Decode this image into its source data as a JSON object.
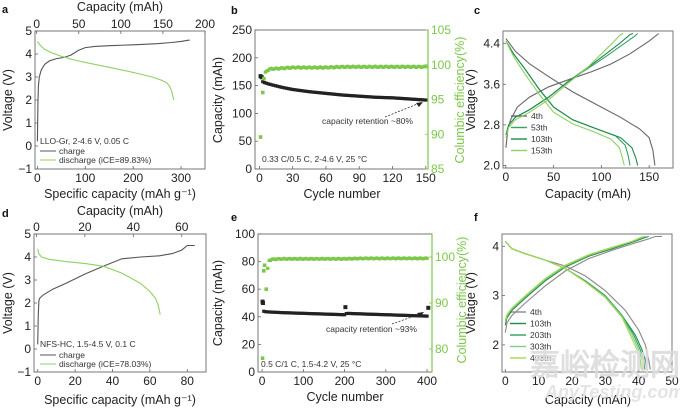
{
  "chart_data": [
    {
      "id": "a",
      "panel_label": "a",
      "type": "line",
      "xlabel": "Specific capacity (mAh g⁻¹)",
      "x2label": "Capacity (mAh)",
      "ylabel": "Voltage (V)",
      "xlim": [
        -5,
        350
      ],
      "x2lim": [
        -2,
        200
      ],
      "ylim": [
        -1,
        5
      ],
      "xticks": [
        0,
        100,
        200,
        300
      ],
      "x2ticks": [
        0,
        50,
        100,
        150,
        200
      ],
      "yticks": [
        -1,
        0,
        1,
        2,
        3,
        4,
        5
      ],
      "annotation": "LLO-Gr, 2-4.6 V, 0.05 C",
      "legend_position": "bottom-left",
      "series": [
        {
          "name": "charge",
          "color": "#555555",
          "x": [
            0,
            1,
            2,
            4,
            8,
            15,
            25,
            40,
            55,
            70,
            85,
            100,
            120,
            150,
            200,
            250,
            280,
            300,
            315,
            318
          ],
          "y": [
            0.2,
            1.8,
            2.6,
            3.0,
            3.3,
            3.55,
            3.7,
            3.8,
            3.85,
            3.95,
            4.15,
            4.28,
            4.33,
            4.36,
            4.4,
            4.45,
            4.5,
            4.55,
            4.6,
            4.6
          ]
        },
        {
          "name": "discharge (iCE=89.83%)",
          "color": "#8fd163",
          "x": [
            0,
            5,
            15,
            30,
            50,
            80,
            120,
            160,
            200,
            240,
            260,
            270,
            276,
            280,
            283,
            285
          ],
          "y": [
            4.55,
            4.4,
            4.2,
            4.05,
            3.9,
            3.72,
            3.55,
            3.38,
            3.2,
            3.0,
            2.85,
            2.75,
            2.6,
            2.4,
            2.15,
            2.0
          ]
        }
      ]
    },
    {
      "id": "b",
      "panel_label": "b",
      "type": "scatter",
      "xlabel": "Cycle number",
      "ylabel": "Capacity (mAh)",
      "y2label": "Columbic efficiency(%)",
      "xlim": [
        -4,
        152
      ],
      "ylim": [
        0,
        250
      ],
      "y2lim": [
        85,
        105
      ],
      "xticks": [
        0,
        30,
        60,
        90,
        120,
        150
      ],
      "yticks": [
        0,
        50,
        100,
        150,
        200,
        250
      ],
      "y2ticks": [
        85,
        90,
        95,
        100,
        105
      ],
      "annotation": "0.33 C/0.5 C, 2-4.6 V, 25 °C",
      "arrow_text": "capacity retention ~80%",
      "series": [
        {
          "name": "Capacity",
          "axis": "left",
          "color": "#222222",
          "x": [
            1,
            2,
            3,
            5,
            10,
            20,
            30,
            45,
            60,
            75,
            90,
            105,
            120,
            135,
            150
          ],
          "y": [
            167,
            165,
            157,
            155,
            152,
            147,
            143,
            139,
            136,
            133,
            131,
            129,
            128,
            126,
            124
          ]
        },
        {
          "name": "Columbic efficiency",
          "axis": "right",
          "color": "#7cc84a",
          "x": [
            1,
            3,
            4,
            5,
            7,
            10,
            20,
            30,
            45,
            60,
            75,
            90,
            105,
            120,
            135,
            150
          ],
          "y": [
            89.6,
            96,
            98,
            98.8,
            99.2,
            99.4,
            99.5,
            99.6,
            99.6,
            99.6,
            99.7,
            99.7,
            99.7,
            99.7,
            99.7,
            99.7
          ]
        }
      ]
    },
    {
      "id": "c",
      "panel_label": "c",
      "type": "line",
      "xlabel": "Capacity (mAh)",
      "ylabel": "Voltage (V)",
      "xlim": [
        -3,
        175
      ],
      "ylim": [
        1.95,
        4.65
      ],
      "xticks": [
        0,
        50,
        100,
        150
      ],
      "yticks": [
        2.0,
        2.8,
        3.6,
        4.4
      ],
      "legend_position": "bottom-left",
      "series": [
        {
          "name": "4th",
          "color": "#666666",
          "charge_x": [
            0,
            2,
            5,
            12,
            25,
            45,
            70,
            90,
            110,
            130,
            150,
            160
          ],
          "charge_y": [
            2.35,
            2.7,
            2.9,
            3.15,
            3.35,
            3.55,
            3.72,
            3.85,
            4.0,
            4.2,
            4.45,
            4.6
          ],
          "discharge_x": [
            0,
            10,
            25,
            45,
            70,
            95,
            120,
            140,
            150,
            154,
            156
          ],
          "discharge_y": [
            4.5,
            4.25,
            4.0,
            3.75,
            3.45,
            3.2,
            2.95,
            2.72,
            2.55,
            2.3,
            2.0
          ]
        },
        {
          "name": "53th",
          "color": "#3aa068",
          "charge_x": [
            0,
            3,
            10,
            25,
            45,
            65,
            85,
            105,
            120,
            135,
            138
          ],
          "charge_y": [
            2.6,
            2.8,
            2.95,
            3.1,
            3.35,
            3.65,
            3.9,
            4.15,
            4.35,
            4.55,
            4.6
          ],
          "discharge_x": [
            0,
            8,
            20,
            35,
            50,
            70,
            95,
            115,
            125,
            128,
            130
          ],
          "discharge_y": [
            4.45,
            4.2,
            3.9,
            3.5,
            3.15,
            2.9,
            2.72,
            2.58,
            2.4,
            2.2,
            2.0
          ]
        },
        {
          "name": "103th",
          "color": "#1f8a4c",
          "charge_x": [
            0,
            3,
            10,
            25,
            45,
            65,
            85,
            105,
            120,
            130,
            133
          ],
          "charge_y": [
            2.6,
            2.8,
            2.95,
            3.1,
            3.35,
            3.65,
            3.92,
            4.2,
            4.42,
            4.58,
            4.6
          ],
          "discharge_x": [
            0,
            8,
            20,
            35,
            50,
            70,
            95,
            120,
            132,
            136,
            138
          ],
          "discharge_y": [
            4.45,
            4.2,
            3.9,
            3.5,
            3.15,
            2.9,
            2.72,
            2.55,
            2.35,
            2.15,
            2.0
          ]
        },
        {
          "name": "153th",
          "color": "#8fd163",
          "charge_x": [
            0,
            3,
            10,
            25,
            45,
            65,
            85,
            100,
            112,
            120,
            123
          ],
          "charge_y": [
            2.55,
            2.75,
            2.9,
            3.05,
            3.3,
            3.62,
            3.92,
            4.2,
            4.42,
            4.58,
            4.6
          ],
          "discharge_x": [
            0,
            8,
            20,
            35,
            50,
            70,
            90,
            110,
            119,
            122,
            124
          ],
          "discharge_y": [
            4.45,
            4.15,
            3.8,
            3.4,
            3.05,
            2.82,
            2.68,
            2.52,
            2.35,
            2.15,
            2.0
          ]
        }
      ]
    },
    {
      "id": "d",
      "panel_label": "d",
      "type": "line",
      "xlabel": "Specific capacity (mAh g⁻¹)",
      "x2label": "Capacity (mAh)",
      "ylabel": "Voltage (V)",
      "xlim": [
        -2,
        90
      ],
      "x2lim": [
        -1,
        70
      ],
      "ylim": [
        -1,
        5
      ],
      "xticks": [
        0,
        20,
        40,
        60,
        80
      ],
      "x2ticks": [
        0,
        20,
        40,
        60
      ],
      "yticks": [
        -1,
        0,
        1,
        2,
        3,
        4,
        5
      ],
      "annotation": "NFS-HC, 1.5-4.5 V, 0.1 C",
      "legend_position": "bottom-left",
      "series": [
        {
          "name": "charge",
          "color": "#555555",
          "x": [
            0,
            0.3,
            0.6,
            1,
            3,
            8,
            15,
            25,
            35,
            45,
            55,
            65,
            72,
            77,
            80,
            84
          ],
          "y": [
            0.2,
            1.5,
            2.1,
            2.2,
            2.35,
            2.6,
            2.85,
            3.25,
            3.6,
            3.92,
            4.0,
            4.05,
            4.15,
            4.3,
            4.5,
            4.5
          ]
        },
        {
          "name": "discharge (iCE=78.03%)",
          "color": "#8fd163",
          "x": [
            0,
            0.5,
            2,
            6,
            15,
            25,
            35,
            45,
            55,
            60,
            63,
            64.5,
            65.5
          ],
          "y": [
            4.35,
            4.15,
            4.0,
            3.9,
            3.8,
            3.72,
            3.6,
            3.3,
            2.85,
            2.5,
            2.2,
            1.9,
            1.5
          ]
        }
      ]
    },
    {
      "id": "e",
      "panel_label": "e",
      "type": "scatter",
      "xlabel": "Cycle number",
      "ylabel": "Capacity (mAh)",
      "y2label": "Columbic efficiency(%)",
      "xlim": [
        -10,
        412
      ],
      "ylim": [
        0,
        100
      ],
      "y2lim": [
        75,
        105
      ],
      "xticks": [
        0,
        100,
        200,
        300,
        400
      ],
      "yticks": [
        0,
        20,
        40,
        60,
        80,
        100
      ],
      "y2ticks": [
        80,
        90,
        100
      ],
      "annotation": "0.5 C/1 C, 1.5-4.2 V, 25 °C",
      "arrow_text": "capacity retention ~93%",
      "series": [
        {
          "name": "Capacity",
          "axis": "left",
          "color": "#222222",
          "x": [
            1,
            2,
            4,
            10,
            50,
            100,
            150,
            200,
            202,
            205,
            250,
            300,
            350,
            400,
            403
          ],
          "y": [
            51,
            50,
            44,
            43.6,
            43,
            42.5,
            42,
            41.5,
            47,
            42.5,
            42,
            41.5,
            41,
            40.5,
            46.5
          ]
        },
        {
          "name": "Columbic efficiency",
          "axis": "right",
          "color": "#7cc84a",
          "x": [
            1,
            4,
            6,
            10,
            15,
            25,
            50,
            100,
            150,
            200,
            250,
            300,
            350,
            400
          ],
          "y": [
            78,
            97,
            98.2,
            93,
            99.2,
            99.5,
            99.6,
            99.6,
            99.6,
            99.6,
            99.7,
            99.7,
            99.7,
            99.7
          ]
        }
      ]
    },
    {
      "id": "f",
      "panel_label": "f",
      "type": "line",
      "xlabel": "Capacity (mAh)",
      "ylabel": "Voltage (V)",
      "xlim": [
        -1,
        50
      ],
      "ylim": [
        1.45,
        4.25
      ],
      "xticks": [
        0,
        10,
        20,
        30,
        40,
        50
      ],
      "yticks": [
        2,
        3,
        4
      ],
      "legend_position": "bottom-left",
      "series": [
        {
          "name": "4th",
          "color": "#888888",
          "charge_x": [
            0,
            0.5,
            2,
            6,
            12,
            18,
            25,
            32,
            38,
            43,
            45,
            47
          ],
          "charge_y": [
            2.25,
            2.45,
            2.6,
            2.85,
            3.2,
            3.5,
            3.75,
            3.92,
            4.05,
            4.15,
            4.2,
            4.2
          ],
          "discharge_x": [
            0,
            2,
            6,
            12,
            18,
            24,
            30,
            36,
            40,
            42,
            43,
            43.5
          ],
          "discharge_y": [
            4.1,
            3.95,
            3.85,
            3.72,
            3.6,
            3.4,
            3.1,
            2.7,
            2.3,
            2.0,
            1.7,
            1.5
          ]
        },
        {
          "name": "103th",
          "color": "#1f8a4c",
          "charge_x": [
            0,
            0.5,
            2,
            6,
            12,
            18,
            25,
            32,
            38,
            42,
            43
          ],
          "charge_y": [
            2.4,
            2.55,
            2.7,
            2.95,
            3.3,
            3.58,
            3.8,
            3.95,
            4.08,
            4.18,
            4.2
          ],
          "discharge_x": [
            0,
            2,
            6,
            12,
            18,
            24,
            30,
            35,
            39,
            41,
            42,
            42.3
          ],
          "discharge_y": [
            4.1,
            3.95,
            3.85,
            3.72,
            3.55,
            3.3,
            3.0,
            2.6,
            2.2,
            1.9,
            1.7,
            1.5
          ]
        },
        {
          "name": "203th",
          "color": "#2fa060",
          "charge_x": [
            0,
            0.5,
            2,
            6,
            12,
            18,
            25,
            32,
            38,
            41,
            42
          ],
          "charge_y": [
            2.45,
            2.6,
            2.72,
            2.97,
            3.32,
            3.6,
            3.82,
            3.97,
            4.1,
            4.18,
            4.2
          ],
          "discharge_x": [
            0,
            2,
            6,
            12,
            18,
            24,
            30,
            35,
            38.5,
            40.5,
            41.5,
            41.8
          ],
          "discharge_y": [
            4.1,
            3.95,
            3.85,
            3.72,
            3.55,
            3.3,
            3.0,
            2.6,
            2.2,
            1.9,
            1.7,
            1.5
          ]
        },
        {
          "name": "303th",
          "color": "#7dce8a",
          "charge_x": [
            0,
            0.5,
            2,
            6,
            12,
            18,
            25,
            32,
            38,
            41,
            42
          ],
          "charge_y": [
            2.45,
            2.6,
            2.73,
            2.98,
            3.33,
            3.6,
            3.82,
            3.97,
            4.1,
            4.18,
            4.2
          ],
          "discharge_x": [
            0,
            2,
            6,
            12,
            18,
            24,
            30,
            35,
            38,
            40,
            41,
            41.2
          ],
          "discharge_y": [
            4.1,
            3.95,
            3.85,
            3.72,
            3.55,
            3.28,
            2.98,
            2.58,
            2.2,
            1.9,
            1.7,
            1.5
          ]
        },
        {
          "name": "403th",
          "color": "#a6d84a",
          "charge_x": [
            0,
            0.5,
            2,
            6,
            12,
            18,
            25,
            32,
            38,
            40.5,
            41.5
          ],
          "charge_y": [
            2.5,
            2.62,
            2.75,
            3.0,
            3.35,
            3.62,
            3.83,
            3.98,
            4.1,
            4.18,
            4.2
          ],
          "discharge_x": [
            0,
            2,
            6,
            12,
            18,
            24,
            30,
            35,
            37.5,
            39.5,
            40.5,
            40.8
          ],
          "discharge_y": [
            4.1,
            3.95,
            3.85,
            3.72,
            3.55,
            3.28,
            2.96,
            2.56,
            2.2,
            1.9,
            1.7,
            1.5
          ]
        }
      ]
    }
  ],
  "watermark": {
    "line1": "嘉峪检测网",
    "line2": "AnyTesting.com"
  }
}
